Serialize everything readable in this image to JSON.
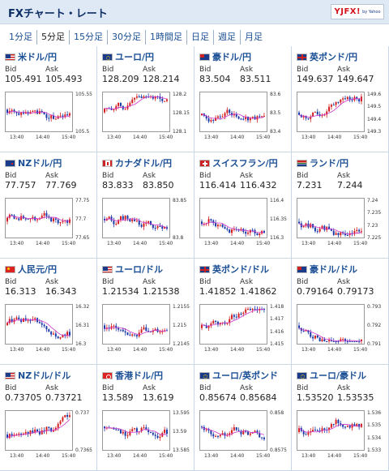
{
  "header": {
    "title": "FXチャート・レート",
    "logo_text": "YJFX!",
    "logo_sub": "by Yahoo"
  },
  "tabs": [
    {
      "label": "1分足",
      "active": false
    },
    {
      "label": "5分足",
      "active": true
    },
    {
      "label": "15分足",
      "active": false
    },
    {
      "label": "30分足",
      "active": false
    },
    {
      "label": "1時間足",
      "active": false
    },
    {
      "label": "日足",
      "active": false
    },
    {
      "label": "週足",
      "active": false
    },
    {
      "label": "月足",
      "active": false
    }
  ],
  "bid_label": "Bid",
  "ask_label": "Ask",
  "colors": {
    "up": "#d42020",
    "down": "#1a3aa8",
    "ma": "#cc33cc",
    "link": "#1a4f95"
  },
  "pairs": [
    {
      "name": "米ドル/円",
      "flag": "us",
      "bid": "105.491",
      "ask": "105.493",
      "yticks": [
        "105.55",
        "105.5"
      ],
      "xticks": [
        "13:40",
        "14:40",
        "15:40"
      ],
      "seed": 3,
      "trend": 0.1
    },
    {
      "name": "ユーロ/円",
      "flag": "eu",
      "bid": "128.209",
      "ask": "128.214",
      "yticks": [
        "128.2",
        "128.15",
        "128.1"
      ],
      "xticks": [
        "13:40",
        "14:40",
        "15:40"
      ],
      "seed": 7,
      "trend": 0.8
    },
    {
      "name": "豪ドル/円",
      "flag": "au",
      "bid": "83.504",
      "ask": "83.511",
      "yticks": [
        "83.6",
        "83.5",
        "83.4"
      ],
      "xticks": [
        "13:40",
        "14:40",
        "15:40"
      ],
      "seed": 11,
      "trend": -0.2
    },
    {
      "name": "英ポンド/円",
      "flag": "gb",
      "bid": "149.637",
      "ask": "149.647",
      "yticks": [
        "149.6",
        "149.5",
        "149.4",
        "149.3"
      ],
      "xticks": [
        "13:40",
        "14:40",
        "15:40"
      ],
      "seed": 13,
      "trend": 1.0
    },
    {
      "name": "NZドル/円",
      "flag": "nz",
      "bid": "77.757",
      "ask": "77.769",
      "yticks": [
        "77.75",
        "77.7",
        "77.65"
      ],
      "xticks": [
        "13:40",
        "14:40",
        "15:40"
      ],
      "seed": 17,
      "trend": 0.3
    },
    {
      "name": "カナダドル/円",
      "flag": "ca",
      "bid": "83.833",
      "ask": "83.850",
      "yticks": [
        "83.85",
        "83.8"
      ],
      "xticks": [
        "13:40",
        "14:40",
        "15:40"
      ],
      "seed": 19,
      "trend": -0.3
    },
    {
      "name": "スイスフラン/円",
      "flag": "ch",
      "bid": "116.414",
      "ask": "116.432",
      "yticks": [
        "116.4",
        "116.35",
        "116.3"
      ],
      "xticks": [
        "13:40",
        "14:40",
        "15:40"
      ],
      "seed": 23,
      "trend": 0.4
    },
    {
      "name": "ランド/円",
      "flag": "za",
      "bid": "7.231",
      "ask": "7.244",
      "yticks": [
        "7.24",
        "7.235",
        "7.23",
        "7.225"
      ],
      "xticks": [
        "13:40",
        "14:40",
        "15:40"
      ],
      "seed": 29,
      "trend": -0.9
    },
    {
      "name": "人民元/円",
      "flag": "cn",
      "bid": "16.313",
      "ask": "16.343",
      "yticks": [
        "16.32",
        "16.31",
        "16.3"
      ],
      "xticks": [
        "13:40",
        "14:40",
        "15:40"
      ],
      "seed": 31,
      "trend": 0.0
    },
    {
      "name": "ユーロ/ドル",
      "flag": "us",
      "bid": "1.21534",
      "ask": "1.21538",
      "yticks": [
        "1.2155",
        "1.215",
        "1.2145"
      ],
      "xticks": [
        "13:40",
        "14:40",
        "15:40"
      ],
      "seed": 37,
      "trend": 0.6
    },
    {
      "name": "英ポンド/ドル",
      "flag": "gb",
      "bid": "1.41852",
      "ask": "1.41862",
      "yticks": [
        "1.418",
        "1.417",
        "1.416",
        "1.415"
      ],
      "xticks": [
        "13:40",
        "14:40",
        "15:40"
      ],
      "seed": 41,
      "trend": 0.9
    },
    {
      "name": "豪ドル/ドル",
      "flag": "au",
      "bid": "0.79164",
      "ask": "0.79173",
      "yticks": [
        "0.793",
        "0.792",
        "0.791"
      ],
      "xticks": [
        "13:40",
        "14:40",
        "15:40"
      ],
      "seed": 43,
      "trend": -0.6
    },
    {
      "name": "NZドル/ドル",
      "flag": "us",
      "bid": "0.73705",
      "ask": "0.73721",
      "yticks": [
        "0.737",
        "0.7365"
      ],
      "xticks": [
        "13:40",
        "14:40",
        "15:40"
      ],
      "seed": 47,
      "trend": 0.2
    },
    {
      "name": "香港ドル/円",
      "flag": "hk",
      "bid": "13.589",
      "ask": "13.619",
      "yticks": [
        "13.595",
        "13.59",
        "13.585"
      ],
      "xticks": [
        "13:40",
        "14:40",
        "15:40"
      ],
      "seed": 53,
      "trend": 0.0
    },
    {
      "name": "ユーロ/英ポンド",
      "flag": "eu",
      "bid": "0.85674",
      "ask": "0.85684",
      "yticks": [
        "0.858",
        "0.8575"
      ],
      "xticks": [
        "13:40",
        "14:40",
        "15:40"
      ],
      "seed": 59,
      "trend": -0.7
    },
    {
      "name": "ユーロ/豪ドル",
      "flag": "eu",
      "bid": "1.53520",
      "ask": "1.53535",
      "yticks": [
        "1.536",
        "1.535",
        "1.534",
        "1.533"
      ],
      "xticks": [
        "13:40",
        "14:40",
        "15:40"
      ],
      "seed": 61,
      "trend": 0.7
    }
  ]
}
